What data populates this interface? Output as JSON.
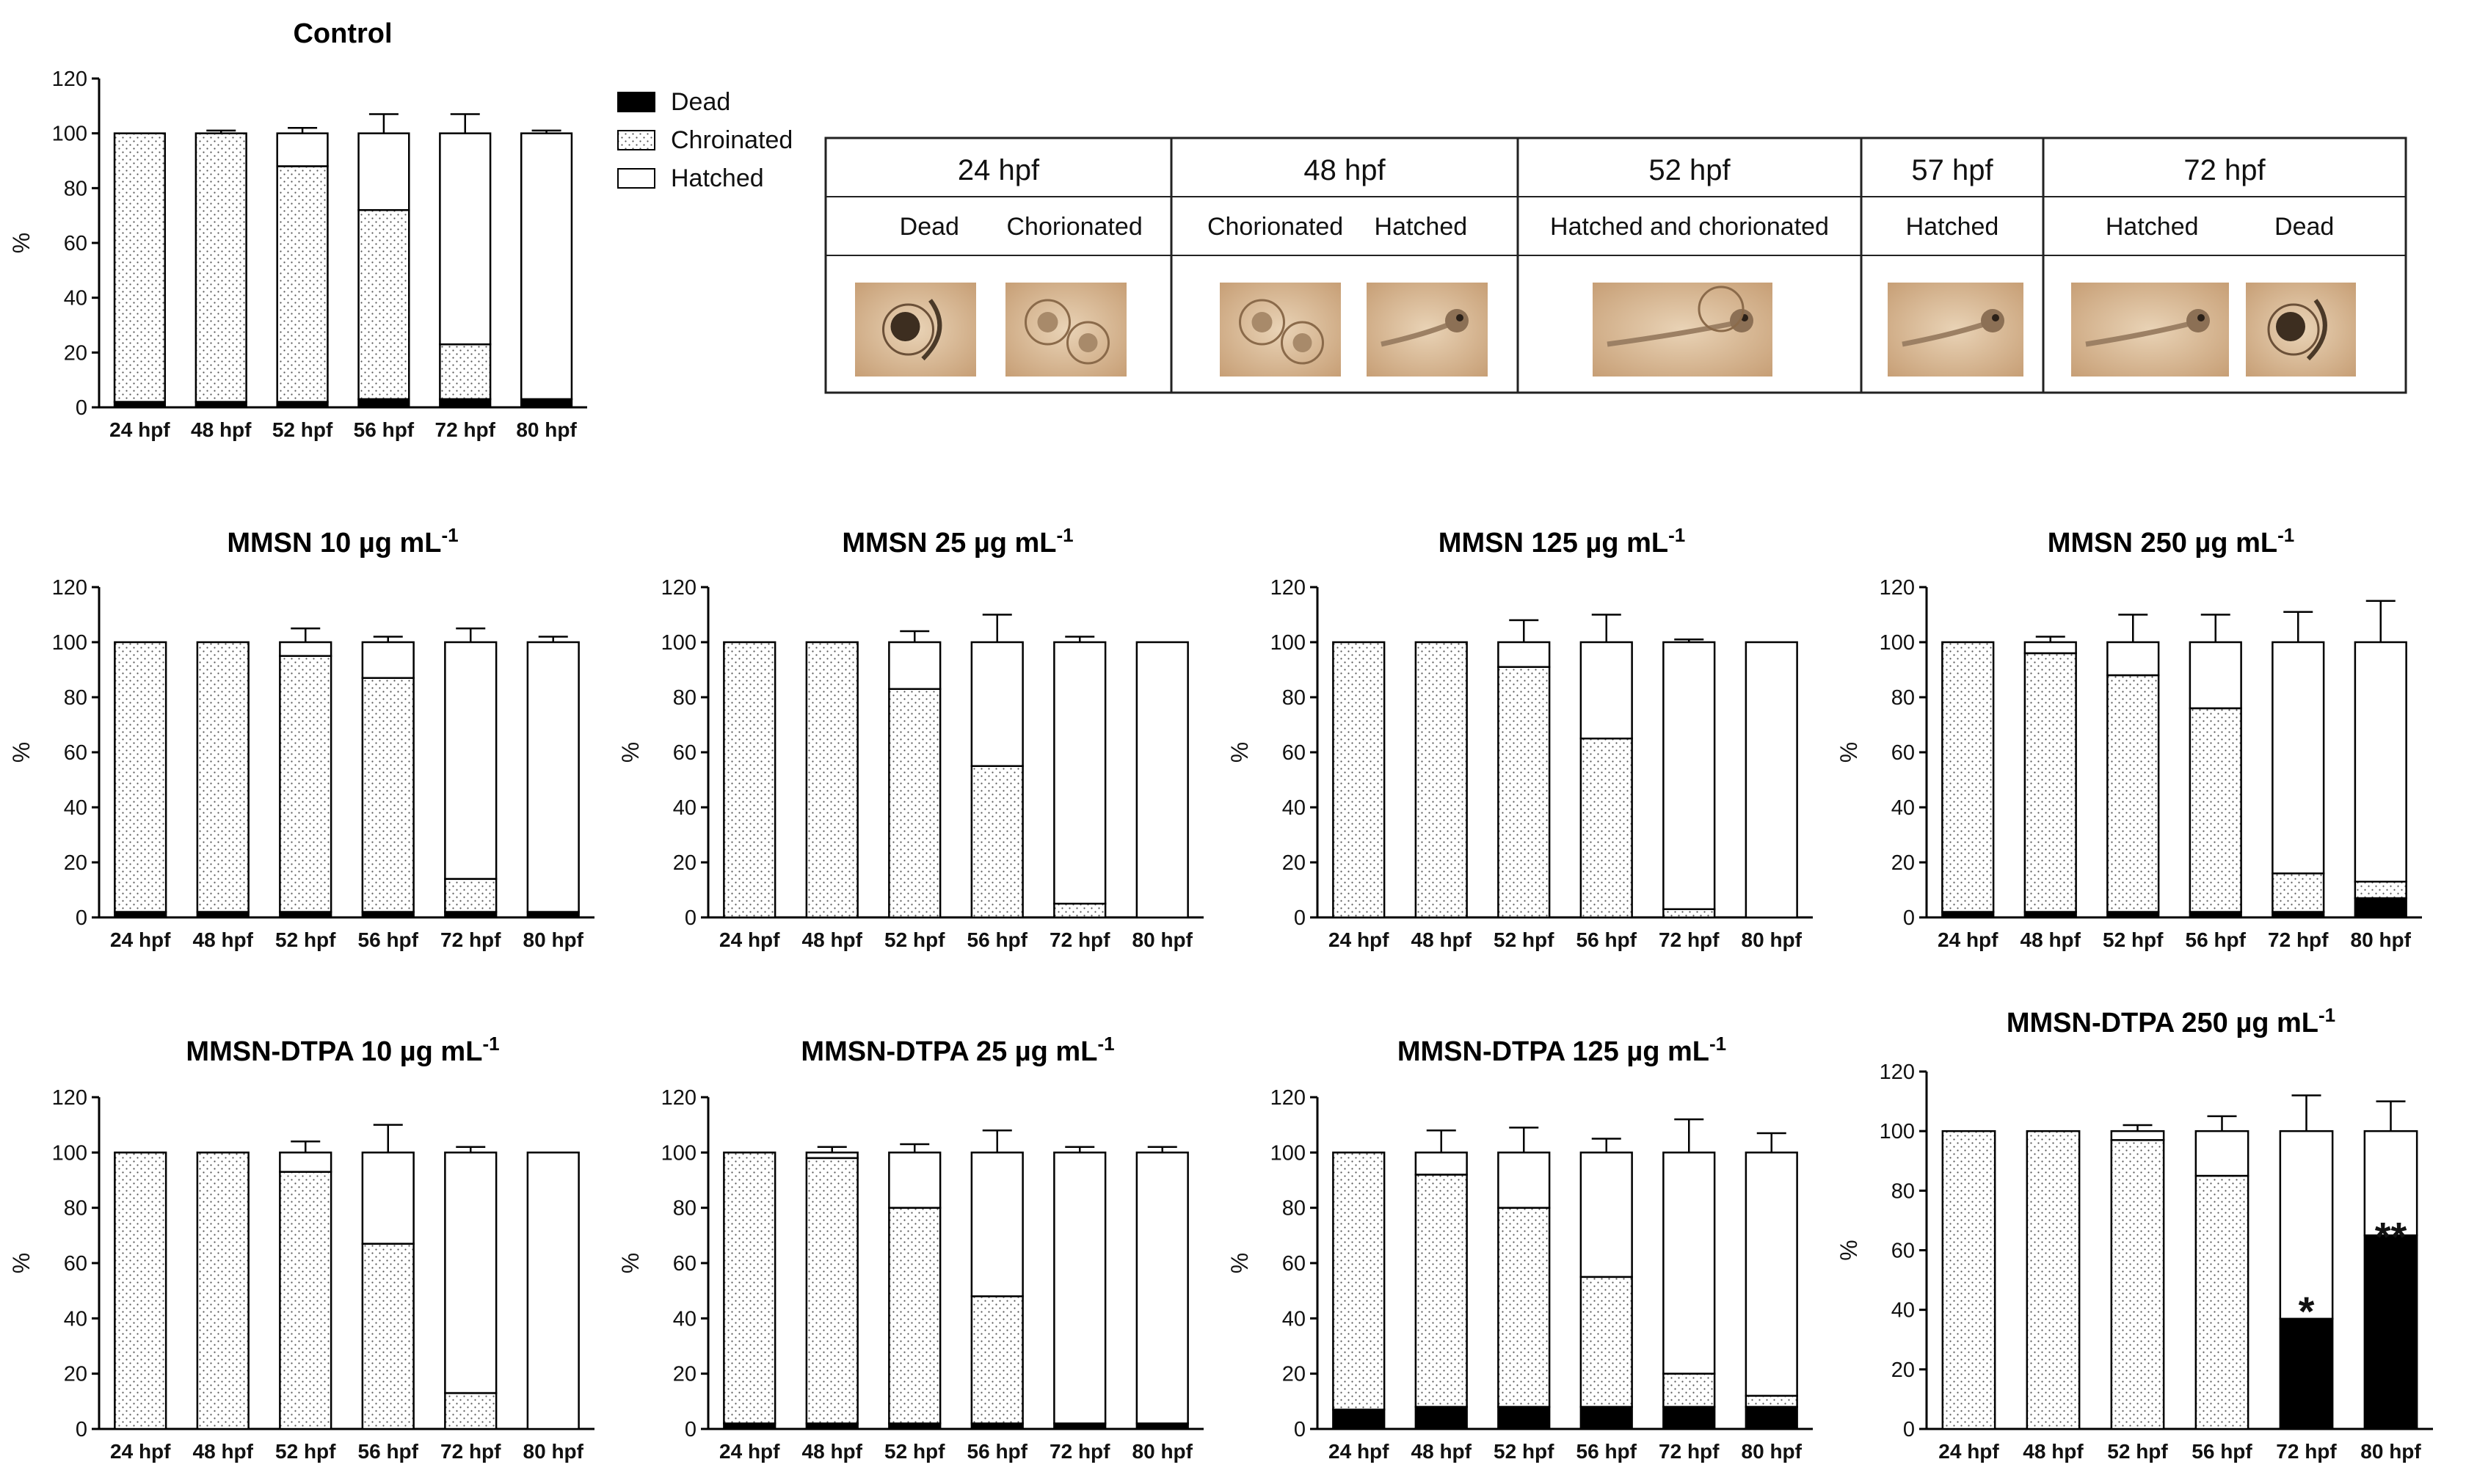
{
  "legend": {
    "items": [
      {
        "label": "Dead",
        "key": "dead",
        "fill": "#000000"
      },
      {
        "label": "Chroinated",
        "key": "chor",
        "fill": "dots"
      },
      {
        "label": "Hatched",
        "key": "hatch",
        "fill": "#ffffff"
      }
    ]
  },
  "table": {
    "columns": [
      {
        "header": "24 hpf",
        "sub": [
          "Dead",
          "Chorionated"
        ]
      },
      {
        "header": "48 hpf",
        "sub": [
          "Chorionated",
          "Hatched"
        ]
      },
      {
        "header": "52 hpf",
        "sub": [
          "Hatched and chorionated"
        ]
      },
      {
        "header": "57 hpf",
        "sub": [
          "Hatched"
        ]
      },
      {
        "header": "72 hpf",
        "sub": [
          "Hatched",
          "Dead"
        ]
      }
    ],
    "photos": [
      "embryo-photo-dead-24hpf",
      "embryo-photo-chorionated-24hpf",
      "embryo-photo-chorionated-48hpf",
      "embryo-photo-hatched-48hpf",
      "embryo-photo-hatched-chorionated-52hpf",
      "embryo-photo-hatched-57hpf",
      "embryo-photo-hatched-72hpf",
      "embryo-photo-dead-72hpf"
    ]
  },
  "chart_data": [
    {
      "type": "bar",
      "stacked": true,
      "title": "Control",
      "title_sup": "",
      "ylabel": "%",
      "ylim": [
        0,
        120
      ],
      "yticks": [
        0,
        20,
        40,
        60,
        80,
        100,
        120
      ],
      "categories": [
        "24 hpf",
        "48 hpf",
        "52 hpf",
        "56 hpf",
        "72 hpf",
        "80 hpf"
      ],
      "series": [
        {
          "key": "dead",
          "values": [
            2,
            2,
            2,
            3,
            3,
            3
          ],
          "err": [
            1,
            1,
            1,
            1,
            1,
            1
          ]
        },
        {
          "key": "chor",
          "values": [
            98,
            98,
            86,
            69,
            20,
            0
          ],
          "err": [
            0,
            1,
            3,
            6,
            7,
            0
          ]
        },
        {
          "key": "hatch",
          "values": [
            0,
            0,
            12,
            28,
            77,
            97
          ],
          "err": [
            1,
            1,
            2,
            7,
            7,
            1
          ]
        }
      ],
      "annotations": [
        "",
        "",
        "",
        "",
        "",
        ""
      ]
    },
    {
      "type": "bar",
      "stacked": true,
      "title": "MMSN 10 µg mL",
      "title_sup": "-1",
      "ylabel": "%",
      "ylim": [
        0,
        120
      ],
      "yticks": [
        0,
        20,
        40,
        60,
        80,
        100,
        120
      ],
      "categories": [
        "24 hpf",
        "48 hpf",
        "52 hpf",
        "56 hpf",
        "72 hpf",
        "80 hpf"
      ],
      "series": [
        {
          "key": "dead",
          "values": [
            2,
            2,
            2,
            2,
            2,
            2
          ],
          "err": [
            2,
            2,
            2,
            2,
            2,
            2
          ]
        },
        {
          "key": "chor",
          "values": [
            98,
            98,
            93,
            85,
            12,
            0
          ],
          "err": [
            0,
            0,
            2,
            5,
            3,
            0
          ]
        },
        {
          "key": "hatch",
          "values": [
            0,
            0,
            5,
            13,
            86,
            98
          ],
          "err": [
            2,
            2,
            5,
            2,
            5,
            2
          ]
        }
      ],
      "annotations": [
        "",
        "",
        "",
        "",
        "",
        ""
      ]
    },
    {
      "type": "bar",
      "stacked": true,
      "title": "MMSN 25 µg mL",
      "title_sup": "-1",
      "ylabel": "%",
      "ylim": [
        0,
        120
      ],
      "yticks": [
        0,
        20,
        40,
        60,
        80,
        100,
        120
      ],
      "categories": [
        "24 hpf",
        "48 hpf",
        "52 hpf",
        "56 hpf",
        "72 hpf",
        "80 hpf"
      ],
      "series": [
        {
          "key": "dead",
          "values": [
            0,
            0,
            0,
            0,
            0,
            0
          ],
          "err": [
            0,
            0,
            0,
            0,
            0,
            0
          ]
        },
        {
          "key": "chor",
          "values": [
            100,
            100,
            83,
            55,
            5,
            0
          ],
          "err": [
            0,
            0,
            4,
            10,
            2,
            0
          ]
        },
        {
          "key": "hatch",
          "values": [
            0,
            0,
            17,
            45,
            95,
            100
          ],
          "err": [
            0,
            0,
            4,
            10,
            2,
            0
          ]
        }
      ],
      "annotations": [
        "",
        "",
        "",
        "",
        "",
        ""
      ]
    },
    {
      "type": "bar",
      "stacked": true,
      "title": "MMSN 125 µg mL",
      "title_sup": "-1",
      "ylabel": "%",
      "ylim": [
        0,
        120
      ],
      "yticks": [
        0,
        20,
        40,
        60,
        80,
        100,
        120
      ],
      "categories": [
        "24 hpf",
        "48 hpf",
        "52 hpf",
        "56 hpf",
        "72 hpf",
        "80 hpf"
      ],
      "series": [
        {
          "key": "dead",
          "values": [
            0,
            0,
            0,
            0,
            0,
            0
          ],
          "err": [
            0,
            0,
            0,
            0,
            0,
            0
          ]
        },
        {
          "key": "chor",
          "values": [
            100,
            100,
            91,
            65,
            3,
            0
          ],
          "err": [
            0,
            0,
            0,
            10,
            1,
            0
          ]
        },
        {
          "key": "hatch",
          "values": [
            0,
            0,
            9,
            35,
            97,
            100
          ],
          "err": [
            0,
            0,
            8,
            10,
            1,
            0
          ]
        }
      ],
      "annotations": [
        "",
        "",
        "",
        "",
        "",
        ""
      ]
    },
    {
      "type": "bar",
      "stacked": true,
      "title": "MMSN 250 µg mL",
      "title_sup": "-1",
      "ylabel": "%",
      "ylim": [
        0,
        120
      ],
      "yticks": [
        0,
        20,
        40,
        60,
        80,
        100,
        120
      ],
      "categories": [
        "24 hpf",
        "48 hpf",
        "52 hpf",
        "56 hpf",
        "72 hpf",
        "80 hpf"
      ],
      "series": [
        {
          "key": "dead",
          "values": [
            2,
            2,
            2,
            2,
            2,
            7
          ],
          "err": [
            2,
            2,
            2,
            2,
            2,
            0
          ]
        },
        {
          "key": "chor",
          "values": [
            98,
            94,
            86,
            74,
            14,
            6
          ],
          "err": [
            0,
            0,
            0,
            8,
            8,
            7
          ]
        },
        {
          "key": "hatch",
          "values": [
            0,
            4,
            12,
            24,
            84,
            87
          ],
          "err": [
            2,
            2,
            10,
            10,
            11,
            15
          ]
        }
      ],
      "annotations": [
        "",
        "",
        "",
        "",
        "",
        ""
      ]
    },
    {
      "type": "bar",
      "stacked": true,
      "title": "MMSN-DTPA 10 µg mL",
      "title_sup": "-1",
      "ylabel": "%",
      "ylim": [
        0,
        120
      ],
      "yticks": [
        0,
        20,
        40,
        60,
        80,
        100,
        120
      ],
      "categories": [
        "24 hpf",
        "48 hpf",
        "52 hpf",
        "56 hpf",
        "72 hpf",
        "80 hpf"
      ],
      "series": [
        {
          "key": "dead",
          "values": [
            0,
            0,
            0,
            0,
            0,
            0
          ],
          "err": [
            0,
            0,
            0,
            0,
            0,
            0
          ]
        },
        {
          "key": "chor",
          "values": [
            100,
            100,
            93,
            67,
            13,
            0
          ],
          "err": [
            0,
            0,
            3,
            10,
            2,
            0
          ]
        },
        {
          "key": "hatch",
          "values": [
            0,
            0,
            7,
            33,
            87,
            100
          ],
          "err": [
            0,
            0,
            4,
            10,
            2,
            0
          ]
        }
      ],
      "annotations": [
        "",
        "",
        "",
        "",
        "",
        ""
      ]
    },
    {
      "type": "bar",
      "stacked": true,
      "title": "MMSN-DTPA 25 µg mL",
      "title_sup": "-1",
      "ylabel": "%",
      "ylim": [
        0,
        120
      ],
      "yticks": [
        0,
        20,
        40,
        60,
        80,
        100,
        120
      ],
      "categories": [
        "24 hpf",
        "48 hpf",
        "52 hpf",
        "56 hpf",
        "72 hpf",
        "80 hpf"
      ],
      "series": [
        {
          "key": "dead",
          "values": [
            2,
            2,
            2,
            2,
            2,
            2
          ],
          "err": [
            1,
            1,
            1,
            1,
            2,
            1
          ]
        },
        {
          "key": "chor",
          "values": [
            98,
            96,
            78,
            46,
            0,
            0
          ],
          "err": [
            0,
            0,
            3,
            9,
            0,
            0
          ]
        },
        {
          "key": "hatch",
          "values": [
            0,
            2,
            20,
            52,
            98,
            98
          ],
          "err": [
            2,
            2,
            3,
            8,
            2,
            2
          ]
        }
      ],
      "annotations": [
        "",
        "",
        "",
        "",
        "",
        ""
      ]
    },
    {
      "type": "bar",
      "stacked": true,
      "title": "MMSN-DTPA 125 µg mL",
      "title_sup": "-1",
      "ylabel": "%",
      "ylim": [
        0,
        120
      ],
      "yticks": [
        0,
        20,
        40,
        60,
        80,
        100,
        120
      ],
      "categories": [
        "24 hpf",
        "48 hpf",
        "52 hpf",
        "56 hpf",
        "72 hpf",
        "80 hpf"
      ],
      "series": [
        {
          "key": "dead",
          "values": [
            7,
            8,
            8,
            8,
            8,
            8
          ],
          "err": [
            3,
            4,
            4,
            4,
            4,
            4
          ]
        },
        {
          "key": "chor",
          "values": [
            93,
            84,
            72,
            47,
            12,
            4
          ],
          "err": [
            0,
            0,
            11,
            3,
            10,
            3
          ]
        },
        {
          "key": "hatch",
          "values": [
            0,
            8,
            20,
            45,
            80,
            88
          ],
          "err": [
            3,
            8,
            9,
            5,
            12,
            7
          ]
        }
      ],
      "annotations": [
        "",
        "",
        "",
        "",
        "",
        ""
      ]
    },
    {
      "type": "bar",
      "stacked": true,
      "title": "MMSN-DTPA 250 µg mL",
      "title_sup": "-1",
      "ylabel": "%",
      "ylim": [
        0,
        120
      ],
      "yticks": [
        0,
        20,
        40,
        60,
        80,
        100,
        120
      ],
      "categories": [
        "24 hpf",
        "48 hpf",
        "52 hpf",
        "56 hpf",
        "72 hpf",
        "80 hpf"
      ],
      "series": [
        {
          "key": "dead",
          "values": [
            0,
            0,
            0,
            0,
            37,
            65
          ],
          "err": [
            0,
            0,
            0,
            0,
            13,
            10
          ]
        },
        {
          "key": "chor",
          "values": [
            100,
            100,
            97,
            85,
            0,
            0
          ],
          "err": [
            0,
            0,
            0,
            5,
            0,
            0
          ]
        },
        {
          "key": "hatch",
          "values": [
            0,
            0,
            3,
            15,
            63,
            35
          ],
          "err": [
            0,
            0,
            2,
            5,
            12,
            10
          ]
        }
      ],
      "annotations": [
        "",
        "",
        "",
        "",
        "*",
        "**"
      ]
    }
  ]
}
